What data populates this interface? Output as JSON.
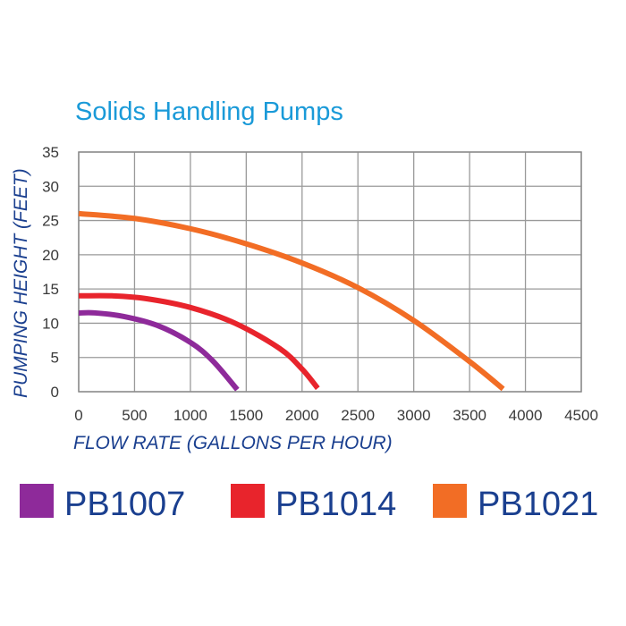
{
  "chart_data": {
    "type": "line",
    "title": "Solids Handling Pumps",
    "xlabel": "FLOW RATE (GALLONS PER HOUR)",
    "ylabel": "PUMPING HEIGHT (FEET)",
    "xlim": [
      0,
      4500
    ],
    "ylim": [
      0,
      35
    ],
    "x_ticks": [
      "0",
      "500",
      "1000",
      "1500",
      "2000",
      "2500",
      "3000",
      "3500",
      "4000",
      "4500"
    ],
    "y_ticks": [
      "0",
      "5",
      "10",
      "15",
      "20",
      "25",
      "30",
      "35"
    ],
    "grid": true,
    "legend_position": "bottom",
    "series": [
      {
        "name": "PB1007",
        "color": "#8e2a9a",
        "x": [
          0,
          150,
          400,
          700,
          1000,
          1200,
          1420
        ],
        "y": [
          11.5,
          11.5,
          11.0,
          9.7,
          7.2,
          4.5,
          0.3
        ]
      },
      {
        "name": "PB1014",
        "color": "#e8242c",
        "x": [
          0,
          300,
          600,
          1000,
          1400,
          1800,
          2000,
          2140
        ],
        "y": [
          14.0,
          14.0,
          13.6,
          12.3,
          10.0,
          6.3,
          3.3,
          0.5
        ]
      },
      {
        "name": "PB1021",
        "color": "#f26d25",
        "x": [
          0,
          500,
          1000,
          1500,
          2000,
          2500,
          3000,
          3500,
          3800
        ],
        "y": [
          26.0,
          25.3,
          23.8,
          21.6,
          18.8,
          15.2,
          10.4,
          4.4,
          0.4
        ]
      }
    ]
  }
}
